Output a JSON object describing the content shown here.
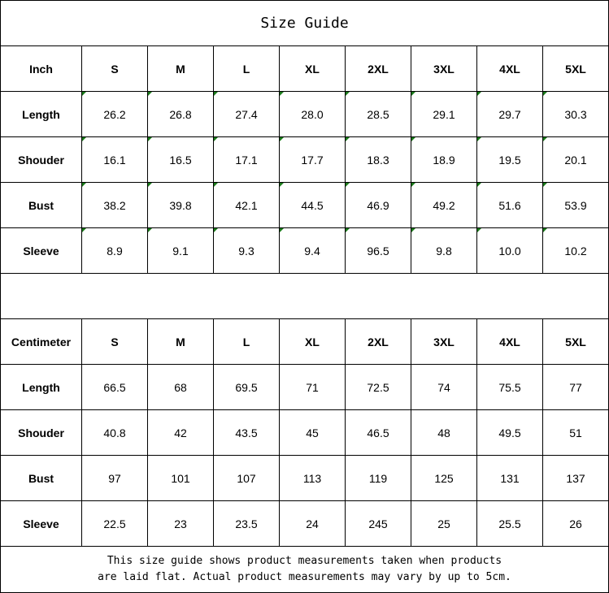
{
  "title": "Size Guide",
  "sizes": [
    "S",
    "M",
    "L",
    "XL",
    "2XL",
    "3XL",
    "4XL",
    "5XL"
  ],
  "inch_table": {
    "unit_label": "Inch",
    "rows": [
      {
        "label": "Length",
        "values": [
          "26.2",
          "26.8",
          "27.4",
          "28.0",
          "28.5",
          "29.1",
          "29.7",
          "30.3"
        ]
      },
      {
        "label": "Shouder",
        "values": [
          "16.1",
          "16.5",
          "17.1",
          "17.7",
          "18.3",
          "18.9",
          "19.5",
          "20.1"
        ]
      },
      {
        "label": "Bust",
        "values": [
          "38.2",
          "39.8",
          "42.1",
          "44.5",
          "46.9",
          "49.2",
          "51.6",
          "53.9"
        ]
      },
      {
        "label": "Sleeve",
        "values": [
          "8.9",
          "9.1",
          "9.3",
          "9.4",
          "96.5",
          "9.8",
          "10.0",
          "10.2"
        ]
      }
    ]
  },
  "cm_table": {
    "unit_label": "Centimeter",
    "rows": [
      {
        "label": "Length",
        "values": [
          "66.5",
          "68",
          "69.5",
          "71",
          "72.5",
          "74",
          "75.5",
          "77"
        ]
      },
      {
        "label": "Shouder",
        "values": [
          "40.8",
          "42",
          "43.5",
          "45",
          "46.5",
          "48",
          "49.5",
          "51"
        ]
      },
      {
        "label": "Bust",
        "values": [
          "97",
          "101",
          "107",
          "113",
          "119",
          "125",
          "131",
          "137"
        ]
      },
      {
        "label": "Sleeve",
        "values": [
          "22.5",
          "23",
          "23.5",
          "24",
          "245",
          "25",
          "25.5",
          "26"
        ]
      }
    ]
  },
  "footer": {
    "line1": "This size guide shows product measurements taken when products",
    "line2": "are laid flat. Actual product measurements may vary by up to 5cm."
  },
  "colors": {
    "error_flag": "#1a7a1a"
  }
}
